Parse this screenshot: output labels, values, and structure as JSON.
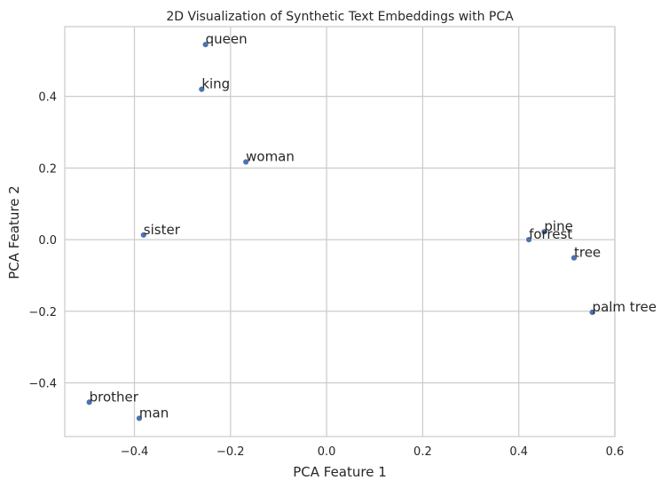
{
  "chart_data": {
    "type": "scatter",
    "title": "2D Visualization of Synthetic Text Embeddings with PCA",
    "xlabel": "PCA Feature 1",
    "ylabel": "PCA Feature 2",
    "xlim": [
      -0.545,
      0.6
    ],
    "ylim": [
      -0.55,
      0.595
    ],
    "xticks": [
      -0.4,
      -0.2,
      0.0,
      0.2,
      0.4,
      0.6
    ],
    "yticks": [
      -0.4,
      -0.2,
      0.0,
      0.2,
      0.4
    ],
    "xtick_labels": [
      "−0.4",
      "−0.2",
      "0.0",
      "0.2",
      "0.4",
      "0.6"
    ],
    "ytick_labels": [
      "−0.4",
      "−0.2",
      "0.0",
      "0.2",
      "0.4"
    ],
    "grid": true,
    "marker_color": "#4c72b0",
    "grid_color": "#cccccc",
    "points": [
      {
        "label": "queen",
        "x": -0.252,
        "y": 0.545
      },
      {
        "label": "king",
        "x": -0.26,
        "y": 0.42
      },
      {
        "label": "woman",
        "x": -0.168,
        "y": 0.217
      },
      {
        "label": "sister",
        "x": -0.381,
        "y": 0.013
      },
      {
        "label": "pine",
        "x": 0.453,
        "y": 0.022
      },
      {
        "label": "forrest",
        "x": 0.421,
        "y": 0.0
      },
      {
        "label": "tree",
        "x": 0.515,
        "y": -0.051
      },
      {
        "label": "palm tree",
        "x": 0.553,
        "y": -0.203
      },
      {
        "label": "brother",
        "x": -0.494,
        "y": -0.454
      },
      {
        "label": "man",
        "x": -0.39,
        "y": -0.499
      }
    ]
  }
}
